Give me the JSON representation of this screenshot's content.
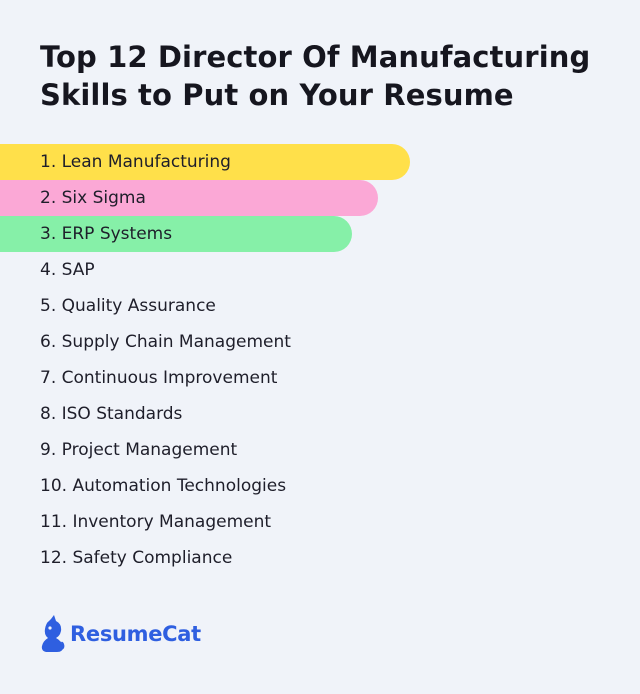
{
  "title_line1": "Top 12 Director Of Manufacturing",
  "title_line2": "Skills to Put on Your Resume",
  "skills": [
    {
      "label": "1. Lean Manufacturing",
      "highlight": "#ffe04a",
      "bar_width_percent": 64
    },
    {
      "label": "2. Six Sigma",
      "highlight": "#fba8d6",
      "bar_width_percent": 59
    },
    {
      "label": "3. ERP Systems",
      "highlight": "#86f0a8",
      "bar_width_percent": 55
    },
    {
      "label": "4. SAP"
    },
    {
      "label": "5. Quality Assurance"
    },
    {
      "label": "6. Supply Chain Management"
    },
    {
      "label": "7. Continuous Improvement"
    },
    {
      "label": "8. ISO Standards"
    },
    {
      "label": "9. Project Management"
    },
    {
      "label": "10. Automation Technologies"
    },
    {
      "label": "11. Inventory Management"
    },
    {
      "label": "12. Safety Compliance"
    }
  ],
  "brand": {
    "name": "ResumeCat",
    "icon": "cat-icon",
    "color": "#2f5fe0"
  }
}
